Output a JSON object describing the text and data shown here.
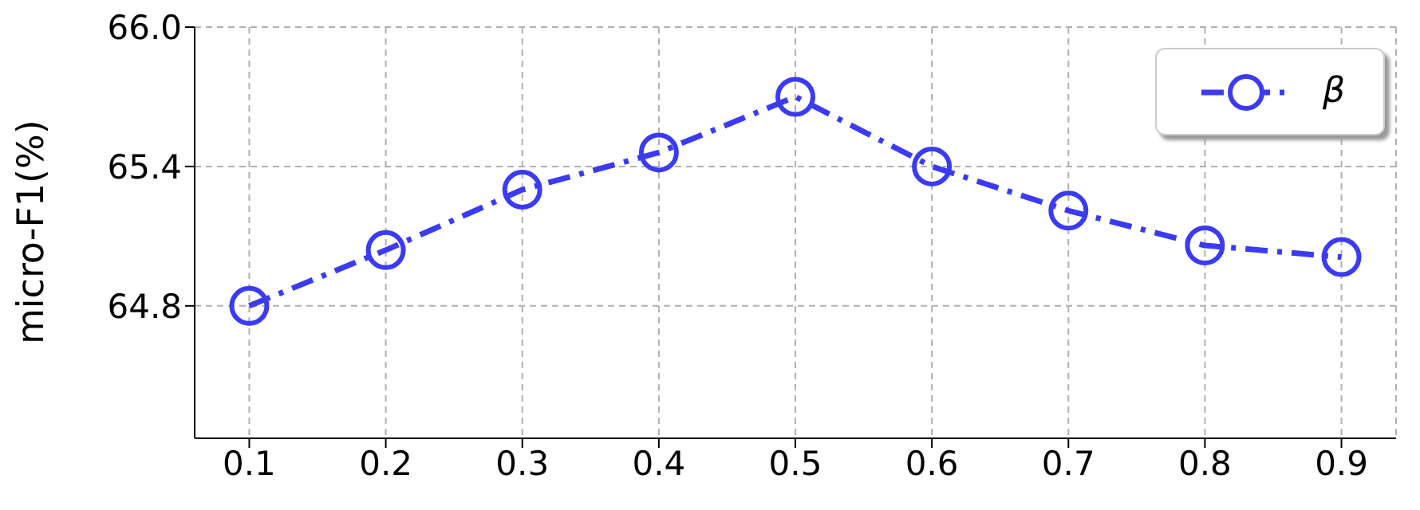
{
  "chart_data": {
    "type": "line",
    "ylabel": "micro-F1(%)",
    "x": [
      0.1,
      0.2,
      0.3,
      0.4,
      0.5,
      0.6,
      0.7,
      0.8,
      0.9
    ],
    "series": [
      {
        "name": "β",
        "color": "#3b3bf5",
        "values": [
          64.8,
          65.04,
          65.3,
          65.46,
          65.7,
          65.4,
          65.21,
          65.06,
          65.01
        ]
      }
    ],
    "xlim": [
      0.06,
      0.94
    ],
    "xticks": [
      0.1,
      0.2,
      0.3,
      0.4,
      0.5,
      0.6,
      0.7,
      0.8,
      0.9
    ],
    "ylim": [
      64.23,
      66.0
    ],
    "yticks": [
      64.8,
      65.4,
      {
        "value": 66,
        "label": "66.0"
      }
    ],
    "grid": true,
    "legend": "top right",
    "marker": "circle",
    "line_style": "dashed"
  }
}
